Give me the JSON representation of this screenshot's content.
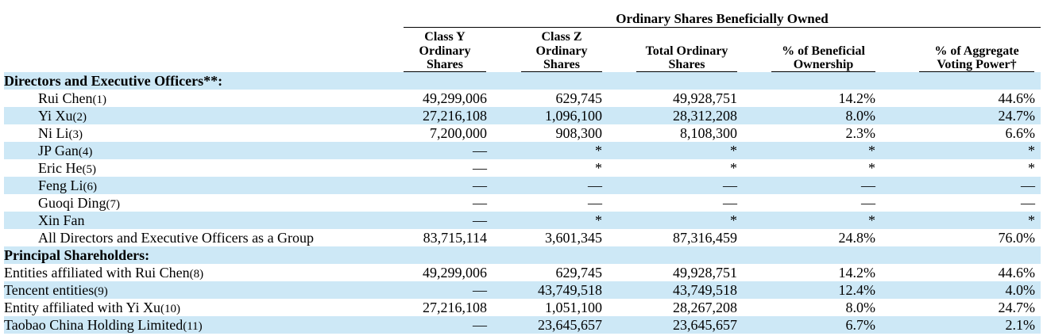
{
  "super_header": "Ordinary Shares Beneficially Owned",
  "columns": [
    {
      "l1": "Class Y",
      "l2": "Ordinary",
      "l3": "Shares"
    },
    {
      "l1": "Class Z",
      "l2": "Ordinary",
      "l3": "Shares"
    },
    {
      "l1": "",
      "l2": "Total Ordinary",
      "l3": "Shares"
    },
    {
      "l1": "",
      "l2": "% of Beneficial",
      "l3": "Ownership"
    },
    {
      "l1": "",
      "l2": "% of Aggregate",
      "l3": "Voting Power†"
    }
  ],
  "rows": [
    {
      "type": "section",
      "label": "Directors and Executive Officers**:",
      "fn": "",
      "v": [
        "",
        "",
        "",
        "",
        ""
      ]
    },
    {
      "type": "indent",
      "label": "Rui Chen",
      "fn": "(1)",
      "v": [
        "49,299,006",
        "629,745",
        "49,928,751",
        "14.2%",
        "44.6%"
      ]
    },
    {
      "type": "indent",
      "label": "Yi Xu",
      "fn": "(2)",
      "v": [
        "27,216,108",
        "1,096,100",
        "28,312,208",
        "8.0%",
        "24.7%"
      ]
    },
    {
      "type": "indent",
      "label": "Ni Li",
      "fn": "(3)",
      "v": [
        "7,200,000",
        "908,300",
        "8,108,300",
        "2.3%",
        "6.6%"
      ]
    },
    {
      "type": "indent",
      "label": "JP Gan",
      "fn": "(4)",
      "v": [
        "—",
        "*",
        "*",
        "*",
        "*"
      ]
    },
    {
      "type": "indent",
      "label": "Eric He",
      "fn": "(5)",
      "v": [
        "—",
        "*",
        "*",
        "*",
        "*"
      ]
    },
    {
      "type": "indent",
      "label": "Feng Li",
      "fn": "(6)",
      "v": [
        "—",
        "—",
        "—",
        "—",
        "—"
      ]
    },
    {
      "type": "indent",
      "label": "Guoqi Ding",
      "fn": "(7)",
      "v": [
        "—",
        "—",
        "—",
        "—",
        "—"
      ]
    },
    {
      "type": "indent",
      "label": "Xin Fan",
      "fn": "",
      "v": [
        "—",
        "*",
        "*",
        "*",
        "*"
      ]
    },
    {
      "type": "indent",
      "label": "All Directors and Executive Officers as a Group",
      "fn": "",
      "v": [
        "83,715,114",
        "3,601,345",
        "87,316,459",
        "24.8%",
        "76.0%"
      ]
    },
    {
      "type": "section",
      "label": "Principal Shareholders:",
      "fn": "",
      "v": [
        "",
        "",
        "",
        "",
        ""
      ]
    },
    {
      "type": "plain",
      "label": "Entities affiliated with Rui Chen",
      "fn": "(8)",
      "v": [
        "49,299,006",
        "629,745",
        "49,928,751",
        "14.2%",
        "44.6%"
      ]
    },
    {
      "type": "plain",
      "label": "Tencent entities",
      "fn": "(9)",
      "v": [
        "—",
        "43,749,518",
        "43,749,518",
        "12.4%",
        "4.0%"
      ]
    },
    {
      "type": "plain",
      "label": "Entity affiliated with Yi Xu",
      "fn": "(10)",
      "v": [
        "27,216,108",
        "1,051,100",
        "28,267,208",
        "8.0%",
        "24.7%"
      ]
    },
    {
      "type": "plain",
      "label": "Taobao China Holding Limited",
      "fn": "(11)",
      "v": [
        "—",
        "23,645,657",
        "23,645,657",
        "6.7%",
        "2.1%"
      ]
    }
  ]
}
